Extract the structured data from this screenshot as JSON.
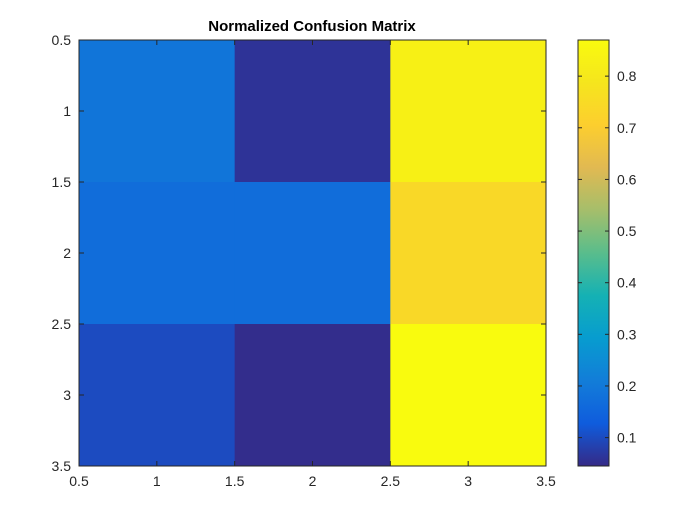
{
  "chart_data": {
    "type": "heatmap",
    "title": "Normalized Confusion Matrix",
    "xlabel": "",
    "ylabel": "",
    "x_ticks": [
      "0.5",
      "1",
      "1.5",
      "2",
      "2.5",
      "3",
      "3.5"
    ],
    "y_ticks": [
      "0.5",
      "1",
      "1.5",
      "2",
      "2.5",
      "3",
      "3.5"
    ],
    "xlim": [
      0.5,
      3.5
    ],
    "ylim": [
      0.5,
      3.5
    ],
    "rows": [
      [
        0.19,
        0.06,
        0.83
      ],
      [
        0.17,
        0.17,
        0.74
      ],
      [
        0.1,
        0.05,
        0.87
      ]
    ],
    "colorbar": {
      "ticks": [
        "0.1",
        "0.2",
        "0.3",
        "0.4",
        "0.5",
        "0.6",
        "0.7",
        "0.8"
      ],
      "range": [
        0.045,
        0.87
      ],
      "colormap": "parula"
    },
    "grid": false
  }
}
